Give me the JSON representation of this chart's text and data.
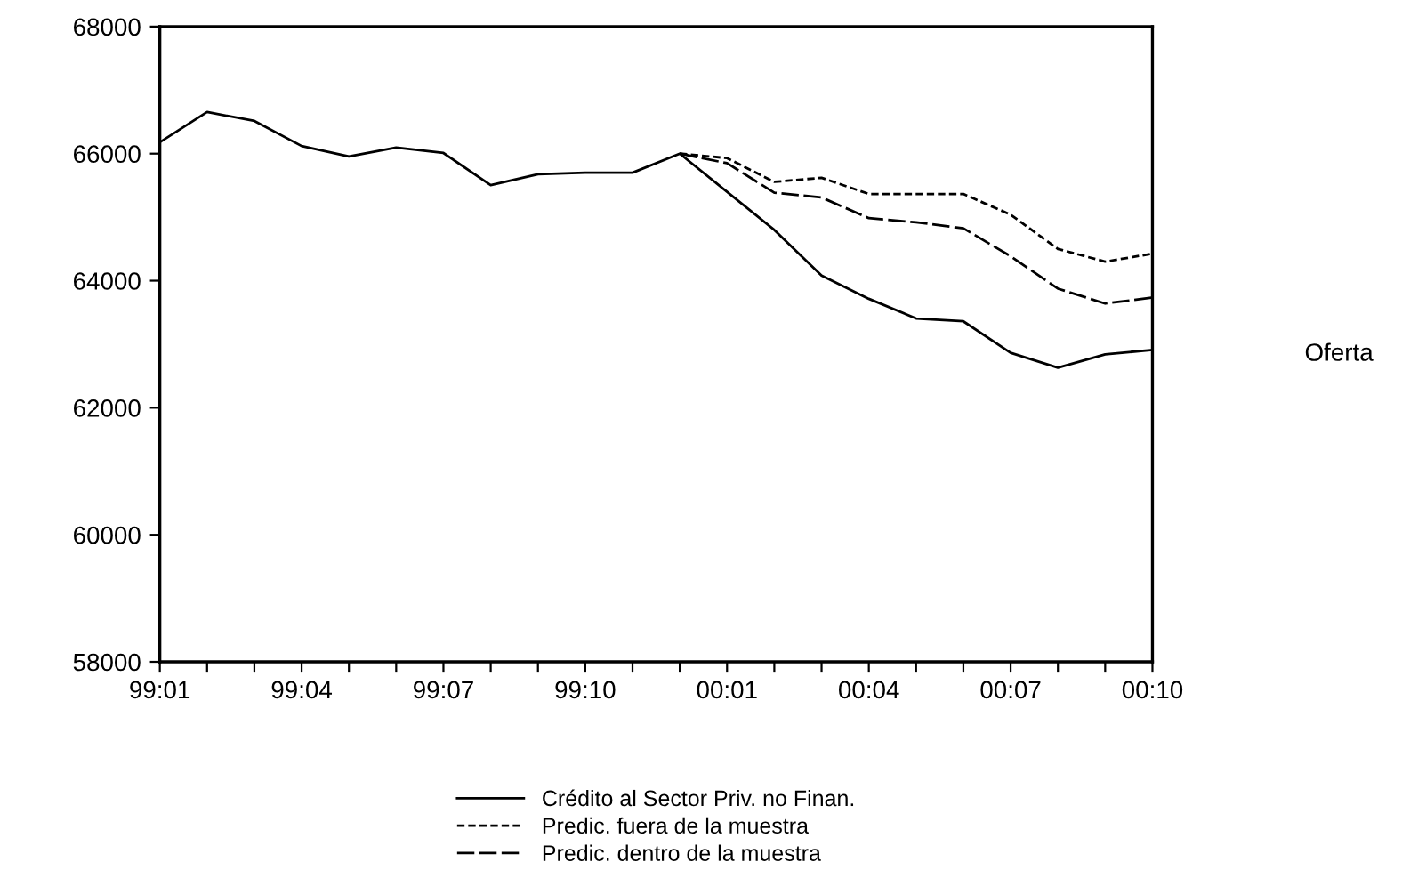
{
  "chart_data": {
    "type": "line",
    "categories": [
      "99:01",
      null,
      null,
      "99:04",
      null,
      null,
      "99:07",
      null,
      null,
      "99:10",
      null,
      null,
      "00:01",
      null,
      null,
      "00:04",
      null,
      null,
      "00:07",
      null,
      null,
      "00:10"
    ],
    "series": [
      {
        "name": "Crédito al Sector Priv. no Finan.",
        "color": "#000000",
        "line_style": "solid",
        "values": [
          66180,
          66655,
          66515,
          66120,
          65955,
          66095,
          66010,
          65505,
          65675,
          65700,
          65700,
          66000,
          65400,
          64800,
          64080,
          63715,
          63405,
          63360,
          62865,
          62630,
          62840,
          62910
        ]
      },
      {
        "name": "Predic. fuera de la muestra",
        "color": "#000000",
        "line_style": "dotted",
        "values": [
          null,
          null,
          null,
          null,
          null,
          null,
          null,
          null,
          null,
          null,
          null,
          66000,
          65930,
          65555,
          65620,
          65365,
          65365,
          65365,
          65040,
          64500,
          64300,
          64425
        ]
      },
      {
        "name": "Predic. dentro de la muestra",
        "color": "#000000",
        "line_style": "dashed",
        "values": [
          null,
          null,
          null,
          null,
          null,
          null,
          null,
          null,
          null,
          null,
          null,
          66000,
          65850,
          65385,
          65310,
          64985,
          64920,
          64825,
          64385,
          63875,
          63640,
          63735
        ]
      }
    ],
    "ylim": [
      58000,
      68000
    ],
    "yticks": [
      58000,
      60000,
      62000,
      64000,
      66000,
      68000
    ],
    "grid": false,
    "legend": "bottom",
    "marker": "none",
    "annotations": [
      "Oferta"
    ]
  }
}
